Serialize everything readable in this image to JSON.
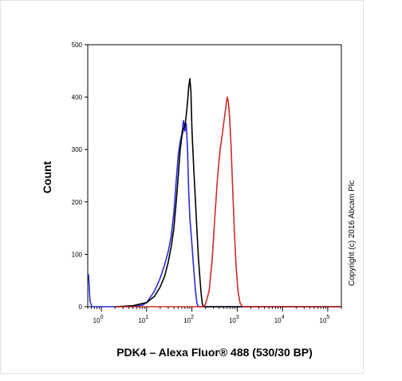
{
  "chart_data": {
    "type": "line",
    "subtype": "flow-cytometry-histogram",
    "xlabel": "PDK4 – Alexa Fluor® 488 (530/30 BP)",
    "ylabel": "Count",
    "x_scale": "log",
    "xlim": [
      0.5,
      200000
    ],
    "ylim": [
      0,
      500
    ],
    "y_ticks": [
      "0",
      "100",
      "200",
      "300",
      "400",
      "500"
    ],
    "x_ticks": [
      {
        "base": "10",
        "exp": "0",
        "value": 1
      },
      {
        "base": "10",
        "exp": "1",
        "value": 10
      },
      {
        "base": "10",
        "exp": "2",
        "value": 100
      },
      {
        "base": "10",
        "exp": "3",
        "value": 1000
      },
      {
        "base": "10",
        "exp": "4",
        "value": 10000
      },
      {
        "base": "10",
        "exp": "5",
        "value": 100000
      }
    ],
    "grid": false,
    "series": [
      {
        "color": "#2b2bd6",
        "points": [
          [
            0.52,
            62
          ],
          [
            0.56,
            10
          ],
          [
            0.62,
            0
          ],
          [
            5,
            0
          ],
          [
            8,
            3
          ],
          [
            10,
            8
          ],
          [
            15,
            30
          ],
          [
            20,
            55
          ],
          [
            25,
            80
          ],
          [
            30,
            105
          ],
          [
            35,
            135
          ],
          [
            40,
            180
          ],
          [
            45,
            240
          ],
          [
            50,
            290
          ],
          [
            55,
            315
          ],
          [
            60,
            330
          ],
          [
            65,
            355
          ],
          [
            70,
            335
          ],
          [
            75,
            350
          ],
          [
            80,
            300
          ],
          [
            85,
            220
          ],
          [
            90,
            170
          ],
          [
            100,
            120
          ],
          [
            110,
            70
          ],
          [
            120,
            30
          ],
          [
            130,
            5
          ],
          [
            140,
            0
          ],
          [
            200000,
            0
          ]
        ]
      },
      {
        "color": "#000000",
        "points": [
          [
            2,
            0
          ],
          [
            5,
            2
          ],
          [
            10,
            8
          ],
          [
            15,
            20
          ],
          [
            20,
            38
          ],
          [
            25,
            58
          ],
          [
            30,
            85
          ],
          [
            35,
            115
          ],
          [
            40,
            150
          ],
          [
            45,
            200
          ],
          [
            50,
            250
          ],
          [
            55,
            300
          ],
          [
            60,
            325
          ],
          [
            65,
            340
          ],
          [
            70,
            345
          ],
          [
            75,
            365
          ],
          [
            80,
            390
          ],
          [
            85,
            420
          ],
          [
            90,
            435
          ],
          [
            95,
            410
          ],
          [
            100,
            340
          ],
          [
            110,
            260
          ],
          [
            120,
            200
          ],
          [
            130,
            140
          ],
          [
            140,
            90
          ],
          [
            150,
            55
          ],
          [
            160,
            25
          ],
          [
            170,
            5
          ],
          [
            180,
            0
          ],
          [
            200000,
            0
          ]
        ]
      },
      {
        "color": "#cc2b2b",
        "points": [
          [
            2,
            0
          ],
          [
            180,
            0
          ],
          [
            200,
            5
          ],
          [
            240,
            30
          ],
          [
            280,
            90
          ],
          [
            320,
            170
          ],
          [
            370,
            250
          ],
          [
            420,
            300
          ],
          [
            470,
            330
          ],
          [
            520,
            360
          ],
          [
            560,
            380
          ],
          [
            600,
            400
          ],
          [
            640,
            390
          ],
          [
            680,
            360
          ],
          [
            730,
            310
          ],
          [
            790,
            230
          ],
          [
            860,
            150
          ],
          [
            940,
            80
          ],
          [
            1040,
            30
          ],
          [
            1150,
            8
          ],
          [
            1300,
            0
          ],
          [
            200000,
            0
          ]
        ]
      }
    ]
  },
  "copyright": "Copyright (c) 2016 Abcam Plc"
}
